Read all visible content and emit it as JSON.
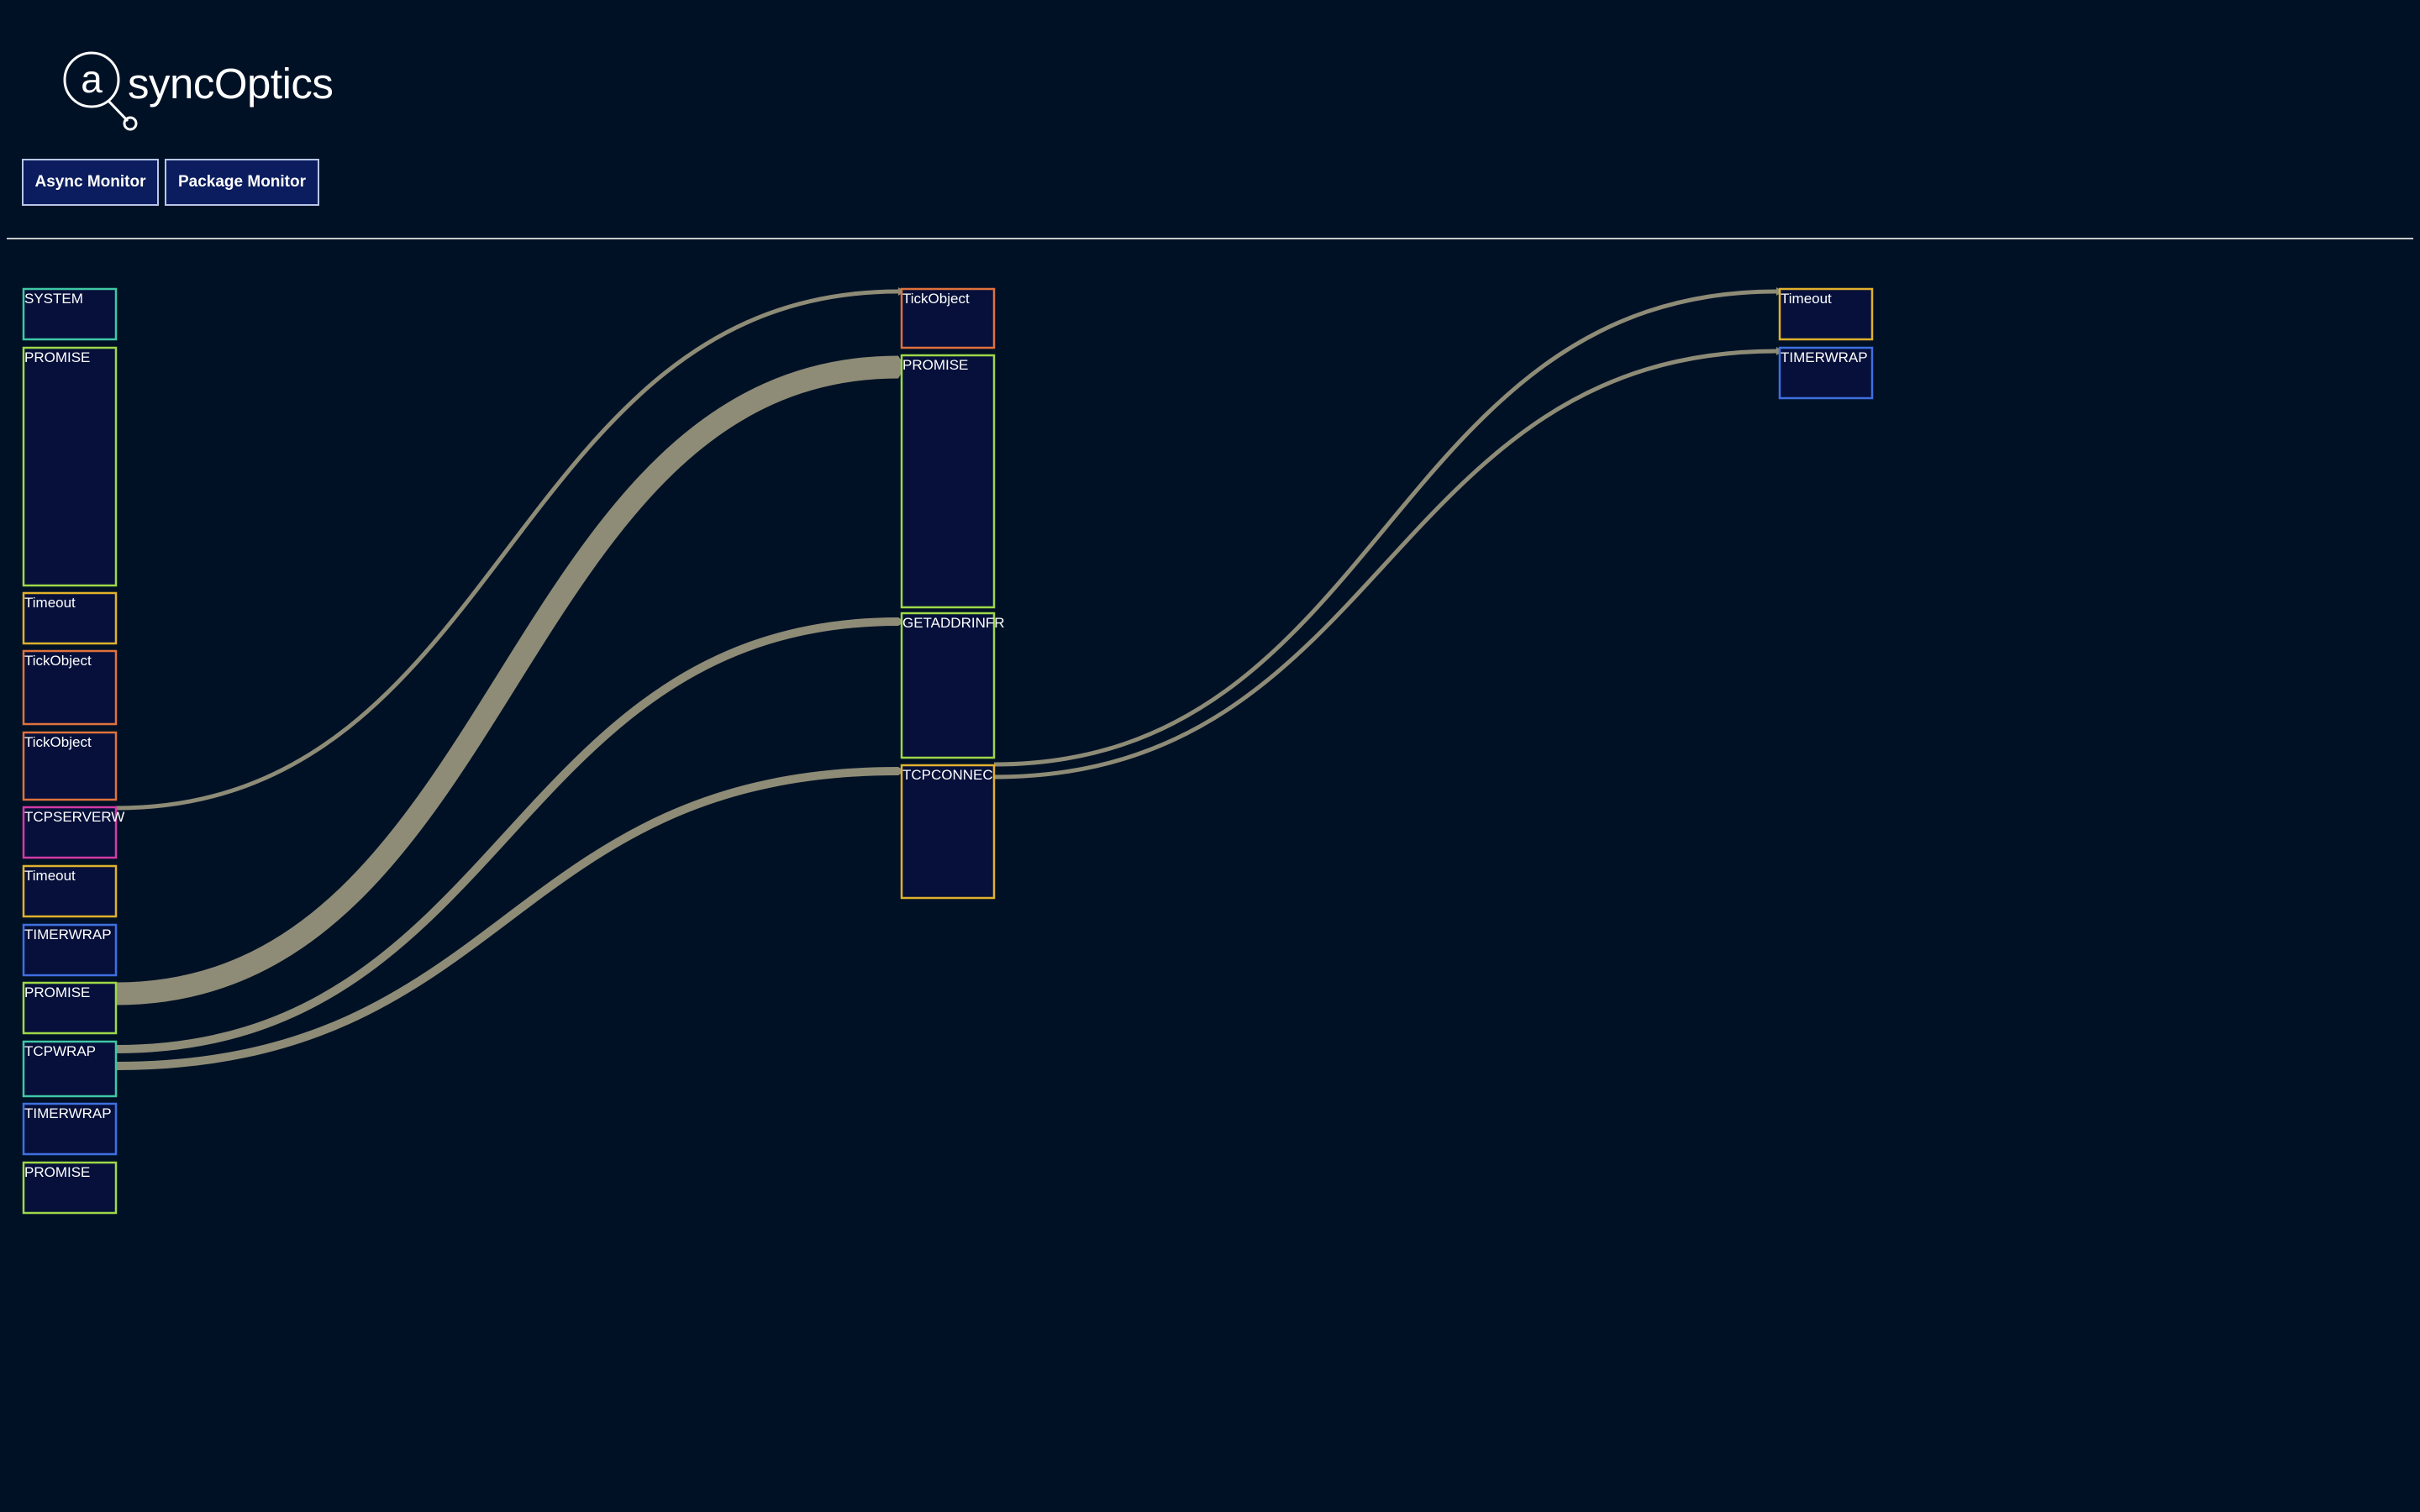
{
  "app": {
    "logo_mark": "a",
    "logo_text": "syncOptics"
  },
  "nav": {
    "async_monitor_label": "Async Monitor",
    "package_monitor_label": "Package Monitor"
  },
  "colors": {
    "background": "#001126",
    "node_fill": "#06103a",
    "link": "#8e8c76",
    "SYSTEM": "#3fc8a4",
    "PROMISE": "#9ed848",
    "Timeout": "#e0b12c",
    "TickObject": "#e0723c",
    "TCPSERVERWRAP": "#d43aa6",
    "TIMERWRAP": "#3f6fe0",
    "TCPWRAP": "#3fc8a4",
    "GETADDRINFOREQWRAP": "#9ed848",
    "TCPCONNECTWRAP": "#e0b12c"
  },
  "columns": [
    {
      "nodes": [
        {
          "label": "SYSTEM",
          "type": "SYSTEM"
        },
        {
          "label": "PROMISE",
          "type": "PROMISE"
        },
        {
          "label": "Timeout",
          "type": "Timeout"
        },
        {
          "label": "TickObject",
          "type": "TickObject"
        },
        {
          "label": "TickObject",
          "type": "TickObject"
        },
        {
          "label": "TCPSERVERW",
          "type": "TCPSERVERWRAP"
        },
        {
          "label": "Timeout",
          "type": "Timeout"
        },
        {
          "label": "TIMERWRAP",
          "type": "TIMERWRAP"
        },
        {
          "label": "PROMISE",
          "type": "PROMISE"
        },
        {
          "label": "TCPWRAP",
          "type": "TCPWRAP"
        },
        {
          "label": "TIMERWRAP",
          "type": "TIMERWRAP"
        },
        {
          "label": "PROMISE",
          "type": "PROMISE"
        }
      ]
    },
    {
      "nodes": [
        {
          "label": "TickObject",
          "type": "TickObject"
        },
        {
          "label": "PROMISE",
          "type": "PROMISE"
        },
        {
          "label": "GETADDRINFR",
          "type": "GETADDRINFOREQWRAP"
        },
        {
          "label": "TCPCONNEC",
          "type": "TCPCONNECTWRAP"
        }
      ]
    },
    {
      "nodes": [
        {
          "label": "Timeout",
          "type": "Timeout"
        },
        {
          "label": "TIMERWRAP",
          "type": "TIMERWRAP"
        }
      ]
    }
  ],
  "links": [
    {
      "from": [
        0,
        5
      ],
      "to": [
        1,
        0
      ],
      "weight": 1
    },
    {
      "from": [
        0,
        8
      ],
      "to": [
        1,
        1
      ],
      "weight": 6
    },
    {
      "from": [
        0,
        9
      ],
      "to": [
        1,
        2
      ],
      "weight": 2
    },
    {
      "from": [
        0,
        9
      ],
      "to": [
        1,
        3
      ],
      "weight": 2
    },
    {
      "from": [
        1,
        3
      ],
      "to": [
        2,
        0
      ],
      "weight": 1
    },
    {
      "from": [
        1,
        3
      ],
      "to": [
        2,
        1
      ],
      "weight": 1
    }
  ]
}
